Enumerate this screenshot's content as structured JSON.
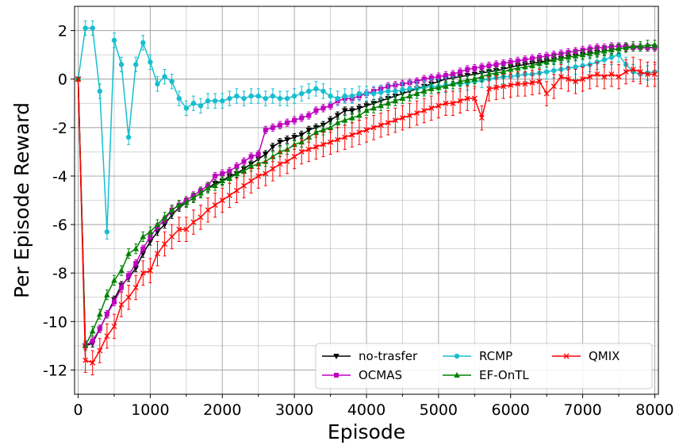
{
  "chart_data": {
    "type": "line",
    "title": "",
    "xlabel": "Episode",
    "ylabel": "Per Episode Reward",
    "xlim": [
      -50,
      8050
    ],
    "ylim": [
      -13,
      3
    ],
    "xticks": [
      0,
      1000,
      2000,
      3000,
      4000,
      5000,
      6000,
      7000,
      8000
    ],
    "yticks": [
      -12,
      -10,
      -8,
      -6,
      -4,
      -2,
      0,
      2
    ],
    "grid": true,
    "legend_position": "lower-right",
    "series": [
      {
        "name": "no-trasfer",
        "color": "#000000",
        "marker": "triangle-down",
        "x": [
          0,
          100,
          200,
          300,
          400,
          500,
          600,
          700,
          800,
          900,
          1000,
          1100,
          1200,
          1300,
          1400,
          1500,
          1600,
          1700,
          1800,
          1900,
          2000,
          2100,
          2200,
          2300,
          2400,
          2500,
          2600,
          2700,
          2800,
          2900,
          3000,
          3100,
          3200,
          3300,
          3400,
          3500,
          3600,
          3700,
          3800,
          3900,
          4000,
          4100,
          4200,
          4300,
          4400,
          4500,
          4600,
          4700,
          4800,
          4900,
          5000,
          5100,
          5200,
          5300,
          5400,
          5500,
          5600,
          5700,
          5800,
          5900,
          6000,
          6100,
          6200,
          6300,
          6400,
          6500,
          6600,
          6700,
          6800,
          6900,
          7000,
          7100,
          7200,
          7300,
          7400,
          7500,
          7600,
          7700,
          7800,
          7900,
          8000
        ],
        "y": [
          0,
          -11,
          -10.9,
          -10.3,
          -9.7,
          -9.1,
          -8.5,
          -8.2,
          -7.8,
          -7.2,
          -6.7,
          -6.3,
          -6.0,
          -5.6,
          -5.3,
          -5.1,
          -4.9,
          -4.7,
          -4.5,
          -4.3,
          -4.2,
          -4.0,
          -3.9,
          -3.7,
          -3.5,
          -3.3,
          -3.1,
          -2.8,
          -2.6,
          -2.5,
          -2.4,
          -2.3,
          -2.1,
          -2.0,
          -1.9,
          -1.7,
          -1.5,
          -1.3,
          -1.3,
          -1.2,
          -1.1,
          -1.0,
          -0.9,
          -0.8,
          -0.7,
          -0.6,
          -0.5,
          -0.4,
          -0.3,
          -0.2,
          -0.1,
          0.0,
          0.05,
          0.1,
          0.15,
          0.2,
          0.25,
          0.3,
          0.35,
          0.4,
          0.5,
          0.55,
          0.6,
          0.65,
          0.7,
          0.75,
          0.8,
          0.85,
          0.9,
          0.95,
          1.0,
          1.05,
          1.1,
          1.15,
          1.2,
          1.25,
          1.3,
          1.3,
          1.3,
          1.3,
          1.3
        ],
        "err": 0.15
      },
      {
        "name": "OCMAS",
        "color": "#bf00bf",
        "marker": "square",
        "x": [
          0,
          100,
          200,
          300,
          400,
          500,
          600,
          700,
          800,
          900,
          1000,
          1100,
          1200,
          1300,
          1400,
          1500,
          1600,
          1700,
          1800,
          1900,
          2000,
          2100,
          2200,
          2300,
          2400,
          2500,
          2600,
          2700,
          2800,
          2900,
          3000,
          3100,
          3200,
          3300,
          3400,
          3500,
          3600,
          3700,
          3800,
          3900,
          4000,
          4100,
          4200,
          4300,
          4400,
          4500,
          4600,
          4700,
          4800,
          4900,
          5000,
          5100,
          5200,
          5300,
          5400,
          5500,
          5600,
          5700,
          5800,
          5900,
          6000,
          6100,
          6200,
          6300,
          6400,
          6500,
          6600,
          6700,
          6800,
          6900,
          7000,
          7100,
          7200,
          7300,
          7400,
          7500,
          7600,
          7700,
          7800,
          7900,
          8000
        ],
        "y": [
          0,
          -11,
          -10.8,
          -10.3,
          -9.7,
          -9.2,
          -8.6,
          -8.1,
          -7.6,
          -7.0,
          -6.5,
          -6.1,
          -5.8,
          -5.4,
          -5.2,
          -5.0,
          -4.8,
          -4.6,
          -4.4,
          -4.0,
          -3.9,
          -3.8,
          -3.6,
          -3.4,
          -3.2,
          -3.1,
          -2.1,
          -2.0,
          -1.9,
          -1.8,
          -1.7,
          -1.6,
          -1.5,
          -1.3,
          -1.2,
          -1.1,
          -0.9,
          -0.8,
          -0.8,
          -0.7,
          -0.6,
          -0.5,
          -0.4,
          -0.3,
          -0.25,
          -0.2,
          -0.15,
          -0.1,
          0.0,
          0.05,
          0.1,
          0.15,
          0.2,
          0.3,
          0.4,
          0.45,
          0.5,
          0.55,
          0.6,
          0.65,
          0.7,
          0.75,
          0.8,
          0.85,
          0.9,
          0.95,
          1.0,
          1.05,
          1.1,
          1.15,
          1.2,
          1.25,
          1.3,
          1.3,
          1.35,
          1.35,
          1.35,
          1.3,
          1.3,
          1.3,
          1.3
        ],
        "err": 0.15
      },
      {
        "name": "RCMP",
        "color": "#17becf",
        "marker": "circle",
        "x": [
          0,
          100,
          200,
          300,
          400,
          500,
          600,
          700,
          800,
          900,
          1000,
          1100,
          1200,
          1300,
          1400,
          1500,
          1600,
          1700,
          1800,
          1900,
          2000,
          2100,
          2200,
          2300,
          2400,
          2500,
          2600,
          2700,
          2800,
          2900,
          3000,
          3100,
          3200,
          3300,
          3400,
          3500,
          3600,
          3700,
          3800,
          3900,
          4000,
          4100,
          4200,
          4300,
          4400,
          4500,
          4600,
          4700,
          4800,
          4900,
          5000,
          5100,
          5200,
          5300,
          5400,
          5500,
          5600,
          5700,
          5800,
          5900,
          6000,
          6100,
          6200,
          6300,
          6400,
          6500,
          6600,
          6700,
          6800,
          6900,
          7000,
          7100,
          7200,
          7300,
          7400,
          7500,
          7600,
          7700,
          7800,
          7900,
          8000
        ],
        "y": [
          0,
          2.1,
          2.1,
          -0.5,
          -6.3,
          1.6,
          0.6,
          -2.4,
          0.6,
          1.5,
          0.7,
          -0.2,
          0.1,
          -0.1,
          -0.8,
          -1.2,
          -1.0,
          -1.1,
          -0.9,
          -0.9,
          -0.9,
          -0.8,
          -0.7,
          -0.8,
          -0.7,
          -0.7,
          -0.8,
          -0.7,
          -0.8,
          -0.8,
          -0.7,
          -0.6,
          -0.5,
          -0.4,
          -0.5,
          -0.7,
          -0.8,
          -0.7,
          -0.7,
          -0.6,
          -0.6,
          -0.6,
          -0.55,
          -0.5,
          -0.5,
          -0.45,
          -0.4,
          -0.4,
          -0.35,
          -0.3,
          -0.3,
          -0.25,
          -0.2,
          -0.2,
          -0.15,
          -0.1,
          -0.05,
          0.0,
          0.05,
          0.1,
          0.1,
          0.15,
          0.2,
          0.2,
          0.25,
          0.3,
          0.35,
          0.4,
          0.45,
          0.5,
          0.55,
          0.6,
          0.7,
          0.8,
          0.9,
          1.0,
          0.6,
          0.3,
          0.2,
          0.25,
          0.3
        ],
        "err": 0.3
      },
      {
        "name": "EF-OnTL",
        "color": "#008000",
        "marker": "triangle-up",
        "x": [
          0,
          100,
          200,
          300,
          400,
          500,
          600,
          700,
          800,
          900,
          1000,
          1100,
          1200,
          1300,
          1400,
          1500,
          1600,
          1700,
          1800,
          1900,
          2000,
          2100,
          2200,
          2300,
          2400,
          2500,
          2600,
          2700,
          2800,
          2900,
          3000,
          3100,
          3200,
          3300,
          3400,
          3500,
          3600,
          3700,
          3800,
          3900,
          4000,
          4100,
          4200,
          4300,
          4400,
          4500,
          4600,
          4700,
          4800,
          4900,
          5000,
          5100,
          5200,
          5300,
          5400,
          5500,
          5600,
          5700,
          5800,
          5900,
          6000,
          6100,
          6200,
          6300,
          6400,
          6500,
          6600,
          6700,
          6800,
          6900,
          7000,
          7100,
          7200,
          7300,
          7400,
          7500,
          7600,
          7700,
          7800,
          7900,
          8000
        ],
        "y": [
          0,
          -11,
          -10.4,
          -9.7,
          -8.9,
          -8.3,
          -7.9,
          -7.2,
          -7.0,
          -6.5,
          -6.3,
          -6.0,
          -5.7,
          -5.4,
          -5.2,
          -5.1,
          -4.9,
          -4.7,
          -4.5,
          -4.4,
          -4.2,
          -4.1,
          -3.9,
          -3.8,
          -3.6,
          -3.5,
          -3.4,
          -3.2,
          -3.0,
          -2.9,
          -2.7,
          -2.6,
          -2.4,
          -2.2,
          -2.1,
          -2.0,
          -1.8,
          -1.7,
          -1.6,
          -1.5,
          -1.3,
          -1.2,
          -1.1,
          -1.0,
          -0.9,
          -0.8,
          -0.7,
          -0.6,
          -0.5,
          -0.4,
          -0.35,
          -0.3,
          -0.2,
          -0.1,
          -0.05,
          0.0,
          0.1,
          0.2,
          0.25,
          0.3,
          0.4,
          0.45,
          0.5,
          0.55,
          0.65,
          0.7,
          0.8,
          0.85,
          0.9,
          0.95,
          1.0,
          1.05,
          1.1,
          1.15,
          1.2,
          1.25,
          1.3,
          1.35,
          1.35,
          1.4,
          1.4
        ],
        "err": 0.2
      },
      {
        "name": "QMIX",
        "color": "#ff0000",
        "marker": "x",
        "x": [
          0,
          100,
          200,
          300,
          400,
          500,
          600,
          700,
          800,
          900,
          1000,
          1100,
          1200,
          1300,
          1400,
          1500,
          1600,
          1700,
          1800,
          1900,
          2000,
          2100,
          2200,
          2300,
          2400,
          2500,
          2600,
          2700,
          2800,
          2900,
          3000,
          3100,
          3200,
          3300,
          3400,
          3500,
          3600,
          3700,
          3800,
          3900,
          4000,
          4100,
          4200,
          4300,
          4400,
          4500,
          4600,
          4700,
          4800,
          4900,
          5000,
          5100,
          5200,
          5300,
          5400,
          5500,
          5600,
          5700,
          5800,
          5900,
          6000,
          6100,
          6200,
          6300,
          6400,
          6500,
          6600,
          6700,
          6800,
          6900,
          7000,
          7100,
          7200,
          7300,
          7400,
          7500,
          7600,
          7700,
          7800,
          7900,
          8000
        ],
        "y": [
          0,
          -11.6,
          -11.7,
          -11.2,
          -10.6,
          -10.2,
          -9.3,
          -9.0,
          -8.6,
          -8.0,
          -7.9,
          -7.2,
          -6.8,
          -6.5,
          -6.2,
          -6.2,
          -5.9,
          -5.7,
          -5.4,
          -5.2,
          -5.0,
          -4.8,
          -4.6,
          -4.4,
          -4.2,
          -4.0,
          -3.9,
          -3.7,
          -3.5,
          -3.4,
          -3.2,
          -3.0,
          -2.9,
          -2.8,
          -2.7,
          -2.6,
          -2.5,
          -2.4,
          -2.3,
          -2.2,
          -2.1,
          -2.0,
          -1.9,
          -1.8,
          -1.7,
          -1.6,
          -1.5,
          -1.4,
          -1.3,
          -1.2,
          -1.1,
          -1.0,
          -1.0,
          -0.9,
          -0.8,
          -0.8,
          -1.6,
          -0.4,
          -0.35,
          -0.3,
          -0.25,
          -0.2,
          -0.2,
          -0.15,
          -0.1,
          -0.6,
          -0.3,
          0.1,
          0.0,
          -0.1,
          0.0,
          0.1,
          0.2,
          0.1,
          0.2,
          0.1,
          0.3,
          0.4,
          0.3,
          0.2,
          0.2
        ],
        "err": 0.5
      }
    ]
  }
}
